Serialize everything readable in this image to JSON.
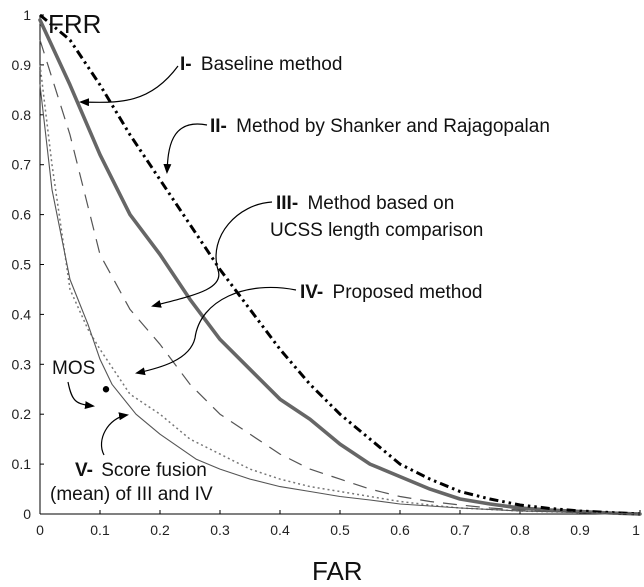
{
  "chart_data": {
    "type": "line",
    "xlabel": "FAR",
    "ylabel": "FRR",
    "xlim": [
      0,
      1
    ],
    "ylim": [
      0,
      1
    ],
    "x_ticks": [
      "0",
      "0.1",
      "0.2",
      "0.3",
      "0.4",
      "0.5",
      "0.6",
      "0.7",
      "0.8",
      "0.9",
      "1"
    ],
    "y_ticks": [
      "0",
      "0.1",
      "0.2",
      "0.3",
      "0.4",
      "0.5",
      "0.6",
      "0.7",
      "0.8",
      "0.9",
      "1"
    ],
    "grid": false,
    "series": [
      {
        "name": "I- Baseline method",
        "style": "thick-solid",
        "color": "#666666",
        "x": [
          0,
          0.05,
          0.1,
          0.15,
          0.2,
          0.25,
          0.3,
          0.35,
          0.4,
          0.45,
          0.5,
          0.55,
          0.6,
          0.65,
          0.7,
          0.75,
          0.8,
          0.85,
          0.9,
          0.95,
          1
        ],
        "y": [
          0.99,
          0.86,
          0.72,
          0.6,
          0.52,
          0.43,
          0.35,
          0.29,
          0.23,
          0.19,
          0.14,
          0.1,
          0.075,
          0.05,
          0.03,
          0.02,
          0.012,
          0.008,
          0.005,
          0.002,
          0
        ]
      },
      {
        "name": "II- Method by Shanker and Rajagopalan",
        "style": "dash-dot",
        "color": "#000000",
        "x": [
          0,
          0.05,
          0.1,
          0.15,
          0.2,
          0.25,
          0.3,
          0.35,
          0.4,
          0.45,
          0.5,
          0.55,
          0.6,
          0.65,
          0.7,
          0.75,
          0.8,
          0.85,
          0.9,
          0.95,
          1
        ],
        "y": [
          1.0,
          0.95,
          0.86,
          0.76,
          0.67,
          0.58,
          0.49,
          0.41,
          0.33,
          0.26,
          0.2,
          0.15,
          0.1,
          0.07,
          0.045,
          0.03,
          0.018,
          0.011,
          0.006,
          0.003,
          0
        ]
      },
      {
        "name": "III- Method based on UCSS length comparison",
        "style": "dashed",
        "color": "#555555",
        "x": [
          0,
          0.05,
          0.1,
          0.15,
          0.2,
          0.25,
          0.3,
          0.35,
          0.4,
          0.45,
          0.5,
          0.55,
          0.6,
          0.65,
          0.7,
          0.75,
          0.8,
          0.85,
          0.9,
          0.95,
          1
        ],
        "y": [
          0.95,
          0.76,
          0.52,
          0.41,
          0.34,
          0.26,
          0.2,
          0.16,
          0.12,
          0.09,
          0.07,
          0.05,
          0.035,
          0.025,
          0.018,
          0.012,
          0.008,
          0.005,
          0.003,
          0.001,
          0
        ]
      },
      {
        "name": "IV- Proposed method",
        "style": "dotted",
        "color": "#777777",
        "x": [
          0,
          0.02,
          0.05,
          0.08,
          0.1,
          0.15,
          0.2,
          0.25,
          0.3,
          0.35,
          0.4,
          0.45,
          0.5,
          0.55,
          0.6,
          0.65,
          0.7,
          0.8,
          0.9,
          1
        ],
        "y": [
          0.9,
          0.7,
          0.45,
          0.37,
          0.33,
          0.24,
          0.2,
          0.15,
          0.12,
          0.09,
          0.07,
          0.055,
          0.045,
          0.035,
          0.025,
          0.018,
          0.012,
          0.006,
          0.003,
          0
        ]
      },
      {
        "name": "V- Score fusion (mean) of III and IV",
        "style": "thin-solid",
        "color": "#555555",
        "x": [
          0,
          0.02,
          0.05,
          0.08,
          0.1,
          0.12,
          0.16,
          0.2,
          0.26,
          0.3,
          0.35,
          0.4,
          0.45,
          0.5,
          0.55,
          0.6,
          0.7,
          0.8,
          0.9,
          1
        ],
        "y": [
          0.86,
          0.65,
          0.47,
          0.38,
          0.31,
          0.26,
          0.2,
          0.16,
          0.11,
          0.09,
          0.07,
          0.055,
          0.045,
          0.035,
          0.028,
          0.02,
          0.012,
          0.006,
          0.003,
          0
        ]
      }
    ],
    "points": [
      {
        "name": "MOS",
        "x": 0.11,
        "y": 0.25
      }
    ],
    "annotations": [
      {
        "roman": "I-",
        "text": "Baseline method"
      },
      {
        "roman": "II-",
        "text": "Method by Shanker and Rajagopalan"
      },
      {
        "roman": "III-",
        "text": "Method based on",
        "text2": "UCSS length comparison"
      },
      {
        "roman": "IV-",
        "text": "Proposed method"
      },
      {
        "roman": "V-",
        "text": "Score fusion",
        "text2": "(mean) of III and IV"
      },
      {
        "roman": "",
        "text": "MOS"
      }
    ]
  }
}
